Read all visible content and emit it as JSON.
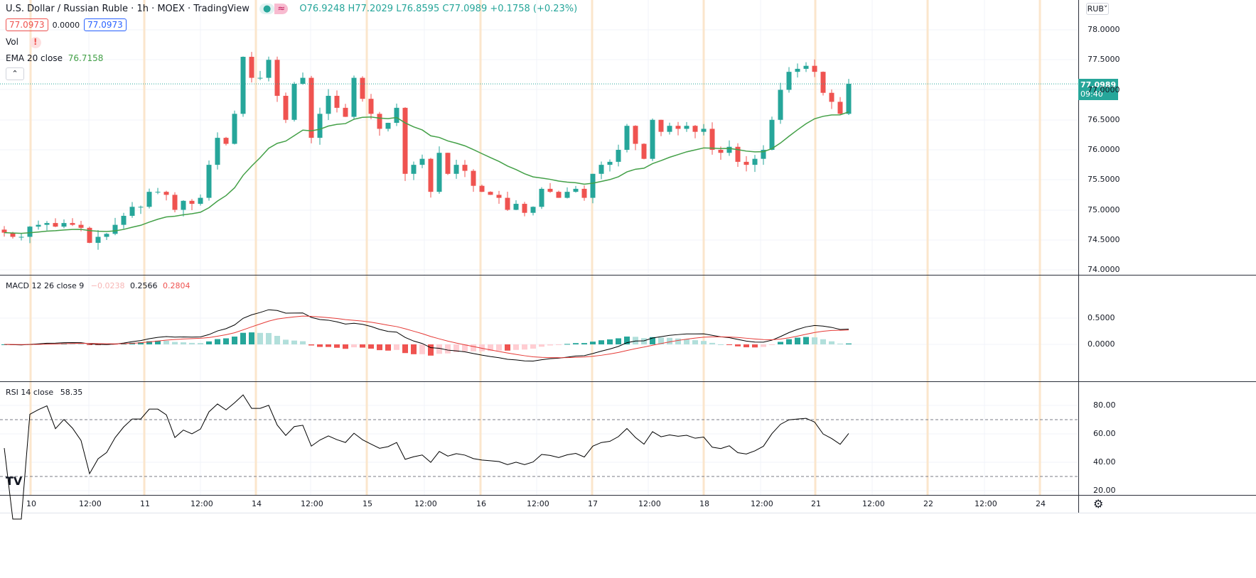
{
  "header": {
    "symbol": "U.S. Dollar / Russian Ruble · 1h · MOEX · TradingView",
    "ohlc": {
      "o": "O76.9248",
      "h": "H77.2029",
      "l": "L76.8595",
      "c": "C77.0989",
      "change": "+0.1758 (+0.23%)"
    },
    "bid": "77.0973",
    "spread": "0.0000",
    "ask": "77.0973",
    "vol_label": "Vol",
    "vol_warning": "!",
    "ema_label": "EMA 20 close",
    "ema_value": "76.7158",
    "collapse_icon": "chevron-up-icon",
    "currency": "RUB"
  },
  "macd_legend": {
    "label": "MACD 12 26 close 9",
    "hist": "−0.0238",
    "macd": "0.2566",
    "signal": "0.2804"
  },
  "rsi_legend": {
    "label": "RSI 14 close",
    "value": "58.35"
  },
  "last_price": {
    "value": "77.0989",
    "countdown": "09:40"
  },
  "colors": {
    "up": "#26a69a",
    "down": "#ef5350",
    "ema": "#43a047",
    "grid": "#f0f3fa",
    "session": "#fbe6cc"
  },
  "chart_data": {
    "type": "candlestick",
    "price_axis": [
      "78.0000",
      "77.5000",
      "77.0000",
      "76.5000",
      "76.0000",
      "75.5000",
      "75.0000",
      "74.5000",
      "74.0000"
    ],
    "price_axis_values": [
      78,
      77.5,
      77,
      76.5,
      76,
      75.5,
      75,
      74.5,
      74
    ],
    "macd_axis": [
      "0.5000",
      "0.0000"
    ],
    "rsi_axis": [
      "80.00",
      "60.00",
      "40.00",
      "20.00"
    ],
    "time_axis": [
      "10",
      "12:00",
      "11",
      "12:00",
      "14",
      "12:00",
      "15",
      "12:00",
      "16",
      "12:00",
      "17",
      "12:00",
      "18",
      "12:00",
      "21",
      "12:00",
      "22",
      "12:00",
      "24"
    ],
    "closes": [
      74.62,
      74.55,
      74.55,
      74.72,
      74.75,
      74.78,
      74.72,
      74.78,
      74.75,
      74.7,
      74.45,
      74.55,
      74.6,
      74.75,
      74.9,
      75.05,
      75.05,
      75.3,
      75.3,
      75.25,
      75.0,
      75.15,
      75.1,
      75.2,
      75.75,
      76.2,
      76.1,
      76.6,
      77.55,
      77.2,
      77.2,
      77.5,
      76.9,
      76.5,
      77.1,
      77.2,
      76.2,
      76.6,
      76.9,
      76.7,
      76.55,
      77.2,
      76.85,
      76.6,
      76.35,
      76.45,
      76.7,
      75.6,
      75.75,
      75.85,
      75.3,
      75.95,
      75.6,
      75.75,
      75.65,
      75.4,
      75.3,
      75.25,
      75.2,
      75.0,
      75.1,
      74.95,
      75.05,
      75.35,
      75.3,
      75.2,
      75.3,
      75.35,
      75.2,
      75.6,
      75.75,
      75.8,
      76.0,
      76.4,
      76.1,
      75.85,
      76.5,
      76.3,
      76.4,
      76.35,
      76.4,
      76.3,
      76.35,
      76.0,
      75.95,
      76.05,
      75.8,
      75.75,
      75.85,
      76.0,
      76.5,
      77.0,
      77.3,
      77.35,
      77.4,
      77.3,
      76.95,
      76.8,
      76.6,
      77.1
    ]
  }
}
